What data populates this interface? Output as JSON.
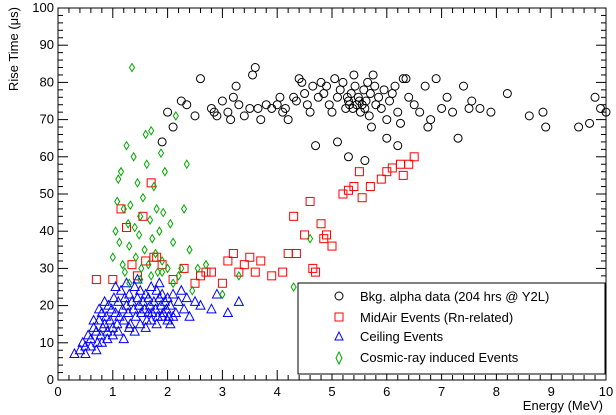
{
  "chart_data": {
    "type": "scatter",
    "xlabel": "Energy (MeV)",
    "ylabel": "Rise Time (μs)",
    "xlim": [
      0,
      10
    ],
    "ylim": [
      0,
      100
    ],
    "x_ticks": [
      "0",
      "1",
      "2",
      "3",
      "4",
      "5",
      "6",
      "7",
      "8",
      "9",
      "10"
    ],
    "y_ticks": [
      "0",
      "10",
      "20",
      "30",
      "40",
      "50",
      "60",
      "70",
      "80",
      "90",
      "100"
    ],
    "grid": false,
    "legend_position": "bottom-right",
    "series": [
      {
        "name": "Bkg. alpha data (204 hrs @ Y2L)",
        "marker": "circle",
        "color": "#000000",
        "points": [
          [
            1.9,
            64
          ],
          [
            2.0,
            72
          ],
          [
            2.1,
            68
          ],
          [
            2.25,
            75
          ],
          [
            2.35,
            74
          ],
          [
            2.5,
            71
          ],
          [
            2.6,
            81
          ],
          [
            2.8,
            73
          ],
          [
            2.85,
            72
          ],
          [
            2.9,
            71
          ],
          [
            3.0,
            75
          ],
          [
            3.1,
            72
          ],
          [
            3.15,
            70
          ],
          [
            3.2,
            76
          ],
          [
            3.25,
            79
          ],
          [
            3.3,
            74
          ],
          [
            3.4,
            71
          ],
          [
            3.5,
            73
          ],
          [
            3.55,
            82
          ],
          [
            3.6,
            84
          ],
          [
            3.65,
            73
          ],
          [
            3.7,
            70
          ],
          [
            3.8,
            74
          ],
          [
            3.9,
            73
          ],
          [
            4.0,
            74
          ],
          [
            4.05,
            76
          ],
          [
            4.1,
            72
          ],
          [
            4.15,
            73
          ],
          [
            4.2,
            70
          ],
          [
            4.3,
            76
          ],
          [
            4.35,
            75
          ],
          [
            4.4,
            81
          ],
          [
            4.45,
            80
          ],
          [
            4.5,
            77
          ],
          [
            4.55,
            74
          ],
          [
            4.6,
            72
          ],
          [
            4.65,
            79
          ],
          [
            4.7,
            63
          ],
          [
            4.75,
            76
          ],
          [
            4.8,
            80
          ],
          [
            4.85,
            77
          ],
          [
            4.9,
            79
          ],
          [
            4.95,
            74
          ],
          [
            5.0,
            72
          ],
          [
            5.05,
            81
          ],
          [
            5.1,
            76
          ],
          [
            5.15,
            78
          ],
          [
            5.2,
            80
          ],
          [
            5.25,
            73
          ],
          [
            5.28,
            76
          ],
          [
            5.3,
            75
          ],
          [
            5.32,
            74
          ],
          [
            5.35,
            77
          ],
          [
            5.38,
            73
          ],
          [
            5.4,
            82
          ],
          [
            5.42,
            79
          ],
          [
            5.45,
            74
          ],
          [
            5.48,
            76
          ],
          [
            5.5,
            75
          ],
          [
            5.52,
            72
          ],
          [
            5.55,
            74
          ],
          [
            5.58,
            78
          ],
          [
            5.6,
            73
          ],
          [
            5.62,
            75
          ],
          [
            5.65,
            80
          ],
          [
            5.68,
            71
          ],
          [
            5.7,
            77
          ],
          [
            5.72,
            68
          ],
          [
            5.75,
            82
          ],
          [
            5.78,
            79
          ],
          [
            5.8,
            74
          ],
          [
            5.85,
            76
          ],
          [
            5.9,
            73
          ],
          [
            5.95,
            78
          ],
          [
            6.0,
            70
          ],
          [
            6.05,
            75
          ],
          [
            6.1,
            77
          ],
          [
            6.15,
            79
          ],
          [
            6.2,
            72
          ],
          [
            6.25,
            69
          ],
          [
            6.3,
            81
          ],
          [
            6.35,
            81
          ],
          [
            6.4,
            76
          ],
          [
            6.5,
            74
          ],
          [
            6.6,
            72
          ],
          [
            6.7,
            79
          ],
          [
            6.75,
            68
          ],
          [
            6.8,
            70
          ],
          [
            6.9,
            81
          ],
          [
            7.0,
            73
          ],
          [
            7.1,
            76
          ],
          [
            7.2,
            72
          ],
          [
            7.3,
            65
          ],
          [
            7.4,
            79
          ],
          [
            7.5,
            73
          ],
          [
            7.55,
            75
          ],
          [
            7.7,
            73
          ],
          [
            7.9,
            72
          ],
          [
            8.2,
            77
          ],
          [
            8.6,
            71
          ],
          [
            8.85,
            72
          ],
          [
            8.9,
            68
          ],
          [
            9.5,
            68
          ],
          [
            9.7,
            69
          ],
          [
            9.8,
            76
          ],
          [
            9.9,
            73
          ],
          [
            10.0,
            72
          ],
          [
            5.1,
            64
          ],
          [
            5.3,
            60
          ],
          [
            5.6,
            59
          ],
          [
            6.0,
            65
          ],
          [
            6.2,
            63
          ]
        ]
      },
      {
        "name": "MidAir Events (Rn-related)",
        "marker": "square",
        "color": "#ff0000",
        "points": [
          [
            0.7,
            27
          ],
          [
            1.0,
            27
          ],
          [
            1.15,
            46
          ],
          [
            1.25,
            41
          ],
          [
            1.35,
            31
          ],
          [
            1.45,
            28
          ],
          [
            1.55,
            44
          ],
          [
            1.6,
            32
          ],
          [
            1.7,
            53
          ],
          [
            1.75,
            33
          ],
          [
            1.8,
            33
          ],
          [
            1.9,
            31
          ],
          [
            2.1,
            27
          ],
          [
            2.3,
            30
          ],
          [
            2.5,
            26
          ],
          [
            2.6,
            28
          ],
          [
            2.7,
            29
          ],
          [
            2.8,
            29
          ],
          [
            3.0,
            26
          ],
          [
            3.1,
            32
          ],
          [
            3.2,
            34
          ],
          [
            3.3,
            29
          ],
          [
            3.4,
            31
          ],
          [
            3.5,
            33
          ],
          [
            3.6,
            29
          ],
          [
            3.7,
            32
          ],
          [
            3.9,
            28
          ],
          [
            4.1,
            29
          ],
          [
            4.2,
            34
          ],
          [
            4.3,
            44
          ],
          [
            4.35,
            34
          ],
          [
            4.5,
            39
          ],
          [
            4.6,
            48
          ],
          [
            4.65,
            30
          ],
          [
            4.7,
            29
          ],
          [
            4.8,
            42
          ],
          [
            4.85,
            38
          ],
          [
            4.9,
            39
          ],
          [
            5.0,
            36
          ],
          [
            5.2,
            50
          ],
          [
            5.3,
            51
          ],
          [
            5.4,
            52
          ],
          [
            5.5,
            56
          ],
          [
            5.55,
            49
          ],
          [
            5.7,
            52
          ],
          [
            5.9,
            54
          ],
          [
            6.0,
            56
          ],
          [
            6.1,
            57
          ],
          [
            6.25,
            58
          ],
          [
            6.3,
            55
          ],
          [
            6.4,
            58
          ],
          [
            6.5,
            60
          ]
        ]
      },
      {
        "name": "Ceiling Events",
        "marker": "triangle",
        "color": "#0000ff",
        "points": [
          [
            0.3,
            7
          ],
          [
            0.4,
            8
          ],
          [
            0.45,
            10
          ],
          [
            0.5,
            9
          ],
          [
            0.55,
            12
          ],
          [
            0.6,
            11
          ],
          [
            0.65,
            14
          ],
          [
            0.7,
            13
          ],
          [
            0.72,
            10
          ],
          [
            0.75,
            16
          ],
          [
            0.78,
            12
          ],
          [
            0.8,
            18
          ],
          [
            0.82,
            14
          ],
          [
            0.85,
            15
          ],
          [
            0.88,
            17
          ],
          [
            0.9,
            13
          ],
          [
            0.92,
            20
          ],
          [
            0.95,
            16
          ],
          [
            0.98,
            19
          ],
          [
            1.0,
            14
          ],
          [
            1.02,
            22
          ],
          [
            1.05,
            18
          ],
          [
            1.08,
            15
          ],
          [
            1.1,
            21
          ],
          [
            1.12,
            17
          ],
          [
            1.15,
            24
          ],
          [
            1.18,
            19
          ],
          [
            1.2,
            16
          ],
          [
            1.22,
            22
          ],
          [
            1.25,
            20
          ],
          [
            1.28,
            18
          ],
          [
            1.3,
            23
          ],
          [
            1.32,
            15
          ],
          [
            1.35,
            21
          ],
          [
            1.38,
            19
          ],
          [
            1.4,
            25
          ],
          [
            1.42,
            17
          ],
          [
            1.45,
            22
          ],
          [
            1.48,
            20
          ],
          [
            1.5,
            24
          ],
          [
            1.52,
            18
          ],
          [
            1.55,
            21
          ],
          [
            1.58,
            19
          ],
          [
            1.6,
            23
          ],
          [
            1.62,
            16
          ],
          [
            1.65,
            22
          ],
          [
            1.68,
            20
          ],
          [
            1.7,
            25
          ],
          [
            1.72,
            18
          ],
          [
            1.75,
            21
          ],
          [
            1.78,
            19
          ],
          [
            1.8,
            24
          ],
          [
            1.82,
            17
          ],
          [
            1.85,
            22
          ],
          [
            1.88,
            20
          ],
          [
            1.9,
            23
          ],
          [
            1.92,
            18
          ],
          [
            1.95,
            21
          ],
          [
            1.98,
            19
          ],
          [
            2.0,
            22
          ],
          [
            2.02,
            17
          ],
          [
            2.05,
            20
          ],
          [
            2.1,
            23
          ],
          [
            2.15,
            18
          ],
          [
            2.2,
            21
          ],
          [
            2.3,
            19
          ],
          [
            2.35,
            22
          ],
          [
            2.4,
            17
          ],
          [
            2.5,
            21
          ],
          [
            2.6,
            20
          ],
          [
            2.8,
            19
          ],
          [
            2.9,
            23
          ],
          [
            3.1,
            18
          ],
          [
            3.3,
            21
          ],
          [
            0.5,
            7
          ],
          [
            0.6,
            9
          ],
          [
            0.7,
            8
          ],
          [
            0.8,
            10
          ],
          [
            0.9,
            11
          ],
          [
            1.0,
            12
          ],
          [
            1.1,
            13
          ],
          [
            1.2,
            11
          ],
          [
            1.3,
            14
          ],
          [
            1.4,
            13
          ],
          [
            1.5,
            15
          ],
          [
            1.6,
            14
          ],
          [
            1.7,
            16
          ],
          [
            1.8,
            15
          ],
          [
            1.9,
            17
          ],
          [
            2.0,
            16
          ],
          [
            2.1,
            17
          ],
          [
            0.65,
            16
          ],
          [
            0.75,
            19
          ],
          [
            0.85,
            21
          ],
          [
            1.05,
            25
          ],
          [
            1.25,
            26
          ],
          [
            1.45,
            27
          ],
          [
            1.65,
            18
          ],
          [
            1.85,
            26
          ],
          [
            2.05,
            15
          ],
          [
            2.25,
            24
          ]
        ]
      },
      {
        "name": "Cosmic-ray induced Events",
        "marker": "diamond",
        "color": "#00aa00",
        "points": [
          [
            1.0,
            33
          ],
          [
            1.05,
            40
          ],
          [
            1.08,
            48
          ],
          [
            1.1,
            54
          ],
          [
            1.12,
            37
          ],
          [
            1.15,
            56
          ],
          [
            1.18,
            31
          ],
          [
            1.2,
            46
          ],
          [
            1.22,
            29
          ],
          [
            1.25,
            63
          ],
          [
            1.28,
            42
          ],
          [
            1.3,
            36
          ],
          [
            1.32,
            47
          ],
          [
            1.35,
            84
          ],
          [
            1.38,
            60
          ],
          [
            1.4,
            41
          ],
          [
            1.42,
            33
          ],
          [
            1.45,
            53
          ],
          [
            1.48,
            39
          ],
          [
            1.5,
            44
          ],
          [
            1.52,
            30
          ],
          [
            1.55,
            49
          ],
          [
            1.58,
            35
          ],
          [
            1.6,
            66
          ],
          [
            1.62,
            58
          ],
          [
            1.65,
            31
          ],
          [
            1.68,
            43
          ],
          [
            1.7,
            67
          ],
          [
            1.72,
            38
          ],
          [
            1.75,
            52
          ],
          [
            1.78,
            34
          ],
          [
            1.8,
            46
          ],
          [
            1.82,
            29
          ],
          [
            1.85,
            40
          ],
          [
            1.88,
            61
          ],
          [
            1.9,
            32
          ],
          [
            1.92,
            45
          ],
          [
            1.95,
            56
          ],
          [
            2.0,
            30
          ],
          [
            2.05,
            42
          ],
          [
            2.1,
            37
          ],
          [
            2.15,
            71
          ],
          [
            2.2,
            28
          ],
          [
            2.3,
            46
          ],
          [
            2.35,
            58
          ],
          [
            2.4,
            35
          ],
          [
            2.45,
            24
          ],
          [
            2.55,
            30
          ],
          [
            2.7,
            31
          ],
          [
            3.0,
            23
          ],
          [
            3.3,
            28
          ],
          [
            4.3,
            25
          ],
          [
            4.6,
            38
          ],
          [
            1.3,
            26
          ],
          [
            1.5,
            27
          ],
          [
            1.7,
            28
          ],
          [
            1.9,
            29
          ],
          [
            2.1,
            26
          ],
          [
            2.25,
            30
          ]
        ]
      }
    ]
  }
}
